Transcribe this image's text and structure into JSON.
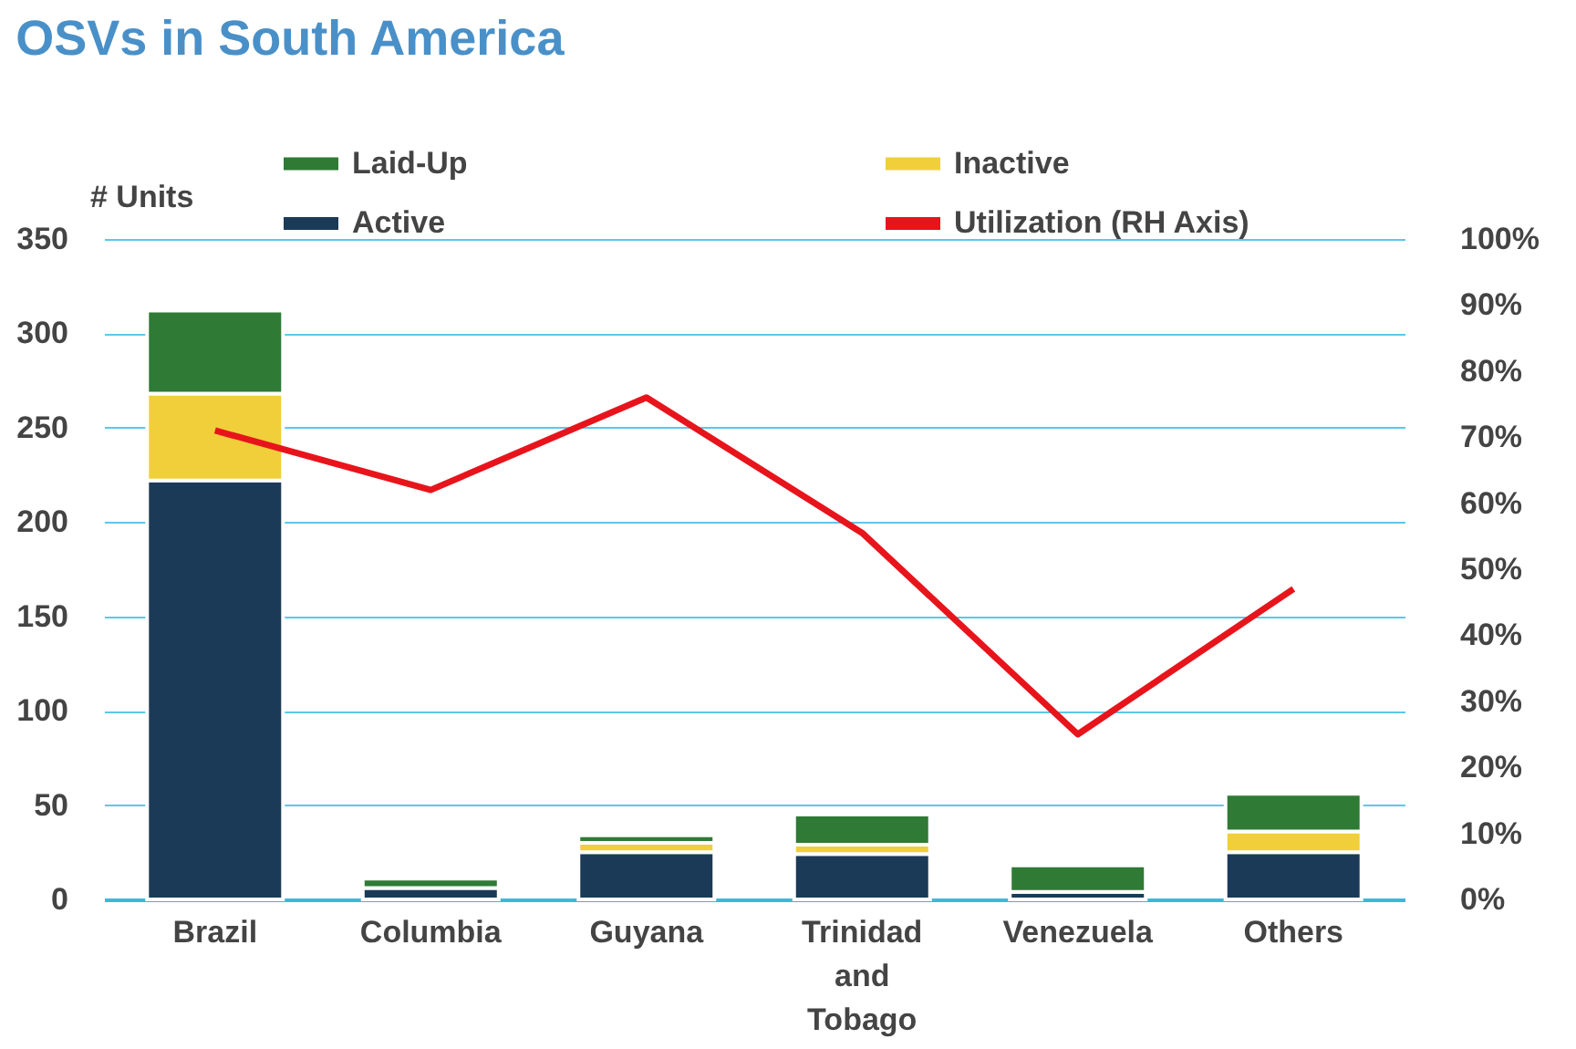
{
  "chart_data": {
    "type": "bar",
    "title": "OSVs in South America",
    "ylabel": "# Units",
    "categories": [
      "Brazil",
      "Columbia",
      "Guyana",
      "Trinidad and Tobago",
      "Venezuela",
      "Others"
    ],
    "stacked": true,
    "series": [
      {
        "name": "Active",
        "color": "#1b3a57",
        "values": [
          222,
          6,
          25,
          24,
          4,
          25
        ]
      },
      {
        "name": "Inactive",
        "color": "#f0cf3a",
        "values": [
          46,
          null,
          5,
          5,
          null,
          11
        ]
      },
      {
        "name": "Laid-Up",
        "color": "#2f7a35",
        "values": [
          44,
          5,
          4,
          16,
          14,
          20
        ]
      },
      {
        "name": "Utilization (RH Axis)",
        "color": "#e8141c",
        "type": "line",
        "axis": "y2",
        "values": [
          71,
          62,
          76,
          55.5,
          25,
          47
        ]
      }
    ],
    "ylim": [
      0,
      350
    ],
    "yticks": [
      0,
      50,
      100,
      150,
      200,
      250,
      300,
      350
    ],
    "y2lim": [
      0,
      100
    ],
    "y2ticks": [
      {
        "value": 0,
        "label": "0%"
      },
      {
        "value": 10,
        "label": "10%"
      },
      {
        "value": 20,
        "label": "20%"
      },
      {
        "value": 30,
        "label": "30%"
      },
      {
        "value": 40,
        "label": "40%"
      },
      {
        "value": 50,
        "label": "50%"
      },
      {
        "value": 60,
        "label": "60%"
      },
      {
        "value": 70,
        "label": "70%"
      },
      {
        "value": 80,
        "label": "80%"
      },
      {
        "value": 90,
        "label": "90%"
      },
      {
        "value": 100,
        "label": "100%"
      }
    ],
    "grid": "y",
    "legend": "top",
    "marker": "none",
    "line_style": "solid"
  }
}
